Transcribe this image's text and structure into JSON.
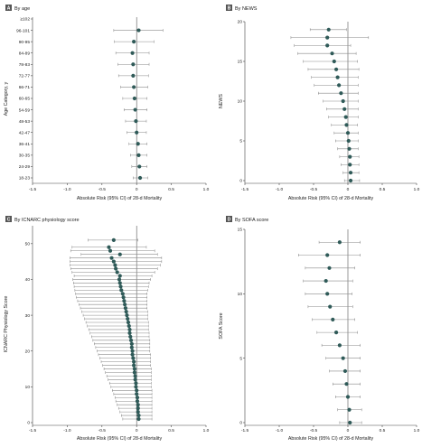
{
  "colors": {
    "point": "#2f5a58",
    "ci": "#8a8a8a",
    "badge": "#555555"
  },
  "chart_data": [
    {
      "type": "scatter",
      "panel_letter": "A",
      "title": "By age",
      "xlabel": "Absolute Risk (95% CI) of 28-d Mortality",
      "ylabel": "Age Category, y",
      "xlim": [
        -1.5,
        1.0
      ],
      "xticks": [
        "-1.5",
        "-1.0",
        "-0.5",
        "0",
        "0.5",
        "1.0"
      ],
      "yaxis": "categorical",
      "categories": [
        "18-23",
        "24-29",
        "30-35",
        "36-41",
        "42-47",
        "48-53",
        "54-59",
        "60-65",
        "66-71",
        "72-77",
        "78-83",
        "84-89",
        "90-95",
        "96-101",
        "≥102"
      ],
      "estimates": [
        0.05,
        0.04,
        0.03,
        0.02,
        0.0,
        -0.01,
        -0.02,
        -0.03,
        -0.04,
        -0.05,
        -0.05,
        -0.06,
        -0.04,
        0.03,
        null
      ],
      "ci_low": [
        -0.05,
        -0.07,
        -0.09,
        -0.11,
        -0.14,
        -0.16,
        -0.18,
        -0.2,
        -0.23,
        -0.26,
        -0.27,
        -0.3,
        -0.32,
        -0.33,
        null
      ],
      "ci_high": [
        0.16,
        0.15,
        0.15,
        0.15,
        0.14,
        0.14,
        0.15,
        0.15,
        0.16,
        0.17,
        0.18,
        0.18,
        0.25,
        0.38,
        null
      ],
      "reference_line_x": 0,
      "grid": false
    },
    {
      "type": "scatter",
      "panel_letter": "B",
      "title": "By NEWS",
      "xlabel": "Absolute Risk (95% CI) of 28-d Mortality",
      "ylabel": "NEWS",
      "xlim": [
        -1.5,
        1.0
      ],
      "xticks": [
        "-1.5",
        "-1.0",
        "-0.5",
        "0",
        "0.5",
        "1.0"
      ],
      "ylim": [
        0,
        20
      ],
      "yticks": [
        "0",
        "5",
        "10",
        "15",
        "20"
      ],
      "y": [
        0,
        1,
        2,
        3,
        4,
        5,
        6,
        7,
        8,
        9,
        10,
        11,
        12,
        13,
        14,
        15,
        16,
        17,
        18,
        19
      ],
      "estimates": [
        0.04,
        0.04,
        0.03,
        0.03,
        0.02,
        0.01,
        0.0,
        -0.02,
        -0.03,
        -0.05,
        -0.07,
        -0.1,
        -0.13,
        -0.15,
        -0.17,
        -0.2,
        -0.23,
        -0.3,
        -0.3,
        -0.28
      ],
      "ci_low": [
        -0.05,
        -0.07,
        -0.1,
        -0.12,
        -0.15,
        -0.18,
        -0.2,
        -0.24,
        -0.28,
        -0.31,
        -0.36,
        -0.43,
        -0.49,
        -0.53,
        -0.58,
        -0.65,
        -0.73,
        -0.78,
        -0.83,
        -0.55
      ],
      "ci_high": [
        0.17,
        0.16,
        0.16,
        0.16,
        0.15,
        0.15,
        0.15,
        0.14,
        0.15,
        0.15,
        0.15,
        0.15,
        0.15,
        0.15,
        0.16,
        0.14,
        0.12,
        0.04,
        0.3,
        -0.02
      ],
      "reference_line_x": 0,
      "grid": false
    },
    {
      "type": "scatter",
      "panel_letter": "C",
      "title": "By ICNARC physiology score",
      "xlabel": "Absolute Risk (95% CI) of 28-d Mortality",
      "ylabel": "ICNARC Physiology Score",
      "xlim": [
        -1.5,
        1.0
      ],
      "xticks": [
        "-1.5",
        "-1.0",
        "-0.5",
        "0",
        "0.5",
        "1.0"
      ],
      "ylim": [
        0,
        55
      ],
      "yticks": [
        "0",
        "10",
        "20",
        "30",
        "40",
        "50"
      ],
      "y": [
        1,
        2,
        3,
        4,
        5,
        6,
        7,
        8,
        9,
        10,
        11,
        12,
        13,
        14,
        15,
        16,
        17,
        18,
        19,
        20,
        21,
        22,
        23,
        24,
        25,
        26,
        27,
        28,
        29,
        30,
        31,
        32,
        33,
        34,
        35,
        36,
        37,
        38,
        39,
        40,
        41,
        42,
        43,
        44,
        45,
        46,
        47,
        48,
        49,
        51
      ],
      "estimates": [
        0.03,
        0.03,
        0.02,
        0.02,
        0.02,
        0.01,
        0.01,
        0.0,
        0.0,
        -0.01,
        -0.01,
        -0.02,
        -0.02,
        -0.03,
        -0.03,
        -0.04,
        -0.04,
        -0.05,
        -0.06,
        -0.06,
        -0.07,
        -0.07,
        -0.08,
        -0.09,
        -0.1,
        -0.1,
        -0.11,
        -0.12,
        -0.13,
        -0.14,
        -0.15,
        -0.16,
        -0.17,
        -0.18,
        -0.19,
        -0.2,
        -0.22,
        -0.23,
        -0.24,
        -0.25,
        -0.24,
        -0.28,
        -0.3,
        -0.31,
        -0.33,
        -0.36,
        -0.24,
        -0.38,
        -0.4,
        -0.33
      ],
      "ci_low": [
        -0.2,
        -0.22,
        -0.24,
        -0.26,
        -0.28,
        -0.3,
        -0.31,
        -0.33,
        -0.35,
        -0.37,
        -0.39,
        -0.41,
        -0.43,
        -0.45,
        -0.47,
        -0.49,
        -0.51,
        -0.53,
        -0.55,
        -0.57,
        -0.59,
        -0.61,
        -0.63,
        -0.65,
        -0.67,
        -0.69,
        -0.71,
        -0.73,
        -0.75,
        -0.77,
        -0.79,
        -0.81,
        -0.83,
        -0.85,
        -0.87,
        -0.88,
        -0.89,
        -0.9,
        -0.91,
        -0.92,
        -0.9,
        -0.93,
        -0.95,
        -0.96,
        -0.96,
        -0.96,
        -0.8,
        -0.95,
        -0.93,
        -0.7
      ],
      "ci_high": [
        0.22,
        0.22,
        0.22,
        0.22,
        0.22,
        0.22,
        0.22,
        0.22,
        0.22,
        0.21,
        0.21,
        0.21,
        0.21,
        0.21,
        0.21,
        0.2,
        0.2,
        0.2,
        0.2,
        0.19,
        0.19,
        0.19,
        0.19,
        0.18,
        0.18,
        0.17,
        0.17,
        0.17,
        0.16,
        0.16,
        0.16,
        0.15,
        0.15,
        0.15,
        0.15,
        0.15,
        0.16,
        0.17,
        0.18,
        0.2,
        0.22,
        0.26,
        0.3,
        0.34,
        0.36,
        0.36,
        0.3,
        0.26,
        0.14,
        0.02
      ],
      "reference_line_x": 0,
      "grid": false
    },
    {
      "type": "scatter",
      "panel_letter": "D",
      "title": "By SOFA score",
      "xlabel": "Absolute Risk (95% CI) of 28-d Mortality",
      "ylabel": "SOFA Score",
      "xlim": [
        -1.5,
        1.0
      ],
      "xticks": [
        "-1.5",
        "-1.0",
        "-0.5",
        "0",
        "0.5",
        "1.0"
      ],
      "ylim": [
        0,
        15
      ],
      "yticks": [
        "0",
        "5",
        "10",
        "15"
      ],
      "y": [
        0,
        1,
        2,
        3,
        4,
        5,
        6,
        7,
        8,
        9,
        10,
        11,
        12,
        13,
        14
      ],
      "estimates": [
        0.03,
        0.02,
        0.0,
        -0.02,
        -0.04,
        -0.07,
        -0.12,
        -0.17,
        -0.22,
        -0.26,
        -0.3,
        -0.32,
        -0.27,
        -0.3,
        -0.12
      ],
      "ci_low": [
        -0.12,
        -0.15,
        -0.18,
        -0.22,
        -0.27,
        -0.32,
        -0.38,
        -0.45,
        -0.52,
        -0.58,
        -0.62,
        -0.65,
        -0.62,
        -0.72,
        -0.42
      ],
      "ci_high": [
        0.2,
        0.2,
        0.18,
        0.18,
        0.18,
        0.18,
        0.18,
        0.14,
        0.1,
        0.07,
        0.06,
        0.07,
        0.1,
        0.18,
        0.18
      ],
      "reference_line_x": 0,
      "grid": false
    }
  ]
}
